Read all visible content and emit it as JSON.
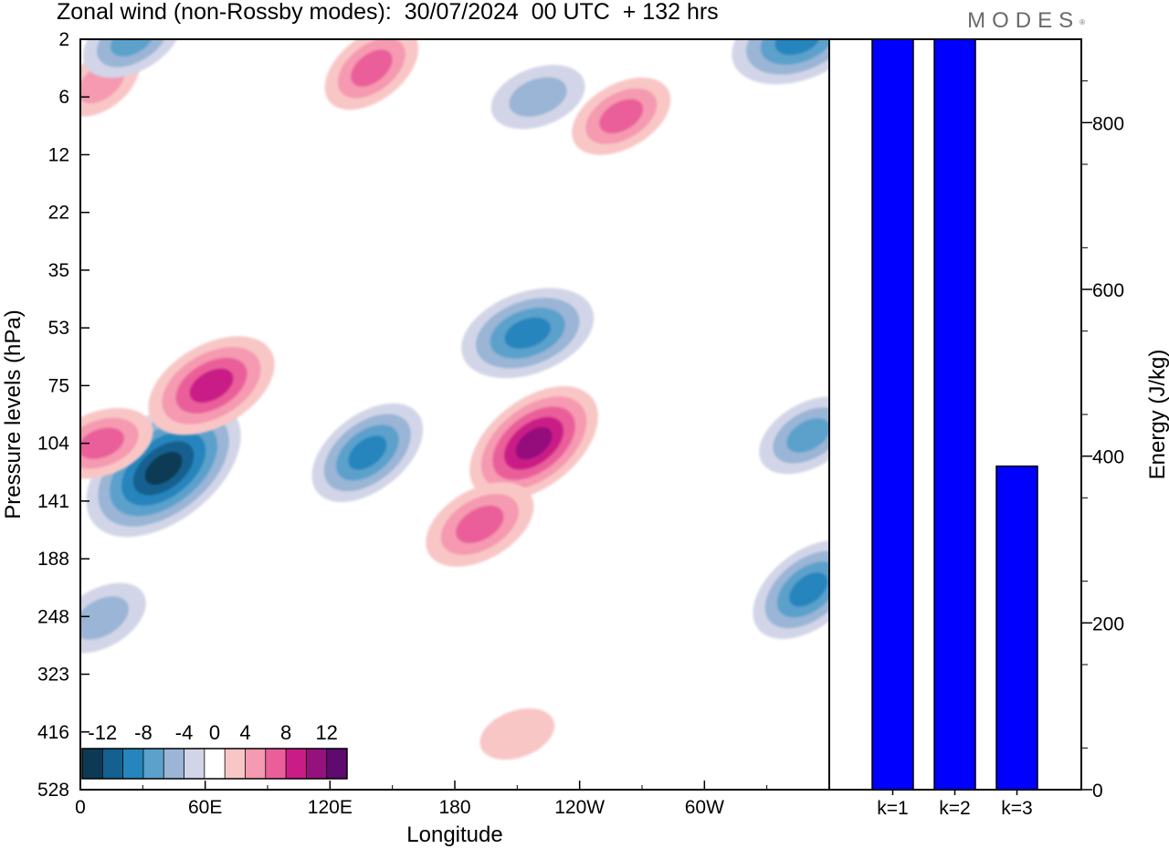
{
  "header": {
    "title": "Zonal wind (non-Rossby modes):  30/07/2024  00 UTC  + 132 hrs",
    "logo_text": "MODES"
  },
  "chart_data": [
    {
      "type": "heatmap",
      "xlabel": "Longitude",
      "ylabel": "Pressure levels (hPa)",
      "x_ticks": [
        "0",
        "60E",
        "120E",
        "180",
        "120W",
        "60W"
      ],
      "x_range_deg": [
        0,
        360
      ],
      "y_ticks": [
        "2",
        "6",
        "12",
        "22",
        "35",
        "53",
        "75",
        "104",
        "141",
        "188",
        "248",
        "323",
        "416",
        "528"
      ],
      "colorbar": {
        "labels": [
          "-12",
          "-8",
          "-4",
          "0",
          "4",
          "8",
          "12"
        ],
        "levels": [
          -14,
          -12,
          -10,
          -8,
          -6,
          -4,
          -2,
          2,
          4,
          6,
          8,
          10,
          12,
          14
        ],
        "colors": [
          "#0c3a55",
          "#14608f",
          "#2585bd",
          "#5ba1cc",
          "#9ab5d5",
          "#d2d5e7",
          "#ffffff",
          "#f9c6c6",
          "#f59ab0",
          "#ea5f9a",
          "#ca1c86",
          "#95117d",
          "#5e0a6e"
        ]
      },
      "features": [
        {
          "lon": 40,
          "plev": 120,
          "value": -13
        },
        {
          "lon": 63,
          "plev": 75,
          "value": 9
        },
        {
          "lon": 10,
          "plev": 104,
          "value": 6
        },
        {
          "lon": 218,
          "plev": 104,
          "value": 10
        },
        {
          "lon": 192,
          "plev": 160,
          "value": 7
        },
        {
          "lon": 215,
          "plev": 55,
          "value": -9
        },
        {
          "lon": 138,
          "plev": 110,
          "value": -8
        },
        {
          "lon": 10,
          "plev": 250,
          "value": -5
        },
        {
          "lon": 210,
          "plev": 420,
          "value": 3
        },
        {
          "lon": 350,
          "plev": 220,
          "value": -8
        },
        {
          "lon": 350,
          "plev": 100,
          "value": -6
        },
        {
          "lon": 345,
          "plev": 2,
          "value": -9
        },
        {
          "lon": 140,
          "plev": 4,
          "value": 6
        },
        {
          "lon": 260,
          "plev": 8,
          "value": 6
        },
        {
          "lon": 220,
          "plev": 6,
          "value": -5
        },
        {
          "lon": 10,
          "plev": 5,
          "value": 4
        },
        {
          "lon": 25,
          "plev": 2,
          "value": -6
        }
      ]
    },
    {
      "type": "bar",
      "categories": [
        "k=1",
        "k=2",
        "k=3"
      ],
      "values": [
        900,
        900,
        388
      ],
      "ylabel": "Energy (J/kg)",
      "y_ticks": [
        0,
        200,
        400,
        600,
        800
      ],
      "ylim": [
        0,
        900
      ],
      "bar_color": "#0000ff"
    }
  ]
}
